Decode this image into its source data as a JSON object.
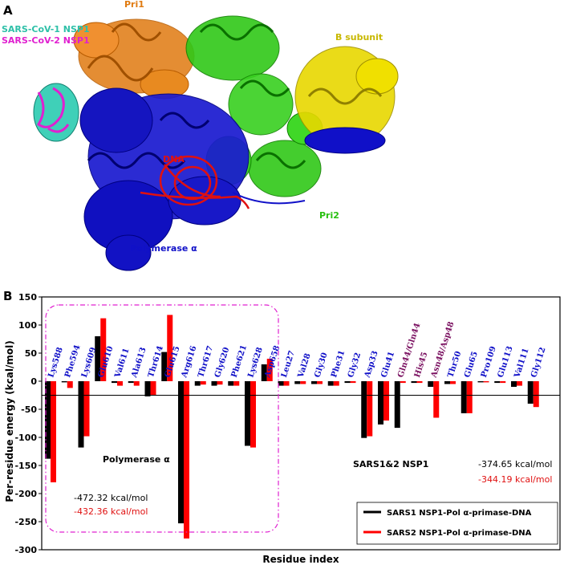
{
  "panel_a": {
    "letter": "A",
    "labels": {
      "pri1": "Pri1",
      "nsp1_cov1": "SARS-CoV-1 NSP1",
      "nsp1_cov2": "SARS-CoV-2 NSP1",
      "b_subunit": "B subunit",
      "dna": "DNA",
      "pri2": "Pri2",
      "polymerase": "Polymerase α"
    },
    "colors": {
      "pri1": "#e07a10",
      "nsp1_cov1": "#3fd0b8",
      "nsp1_cov2": "#e020d0",
      "b_subunit": "#d8c800",
      "dna": "#e01010",
      "pri2": "#28c010",
      "polymerase": "#1010c8"
    }
  },
  "panel_b": {
    "letter": "B",
    "region_label_pol": "Polymerase α",
    "region_label_nsp1": "SARS1&2 NSP1",
    "pol_totals": [
      "-472.32 kcal/mol",
      "-432.36 kcal/mol"
    ],
    "nsp1_totals": [
      "-374.65 kcal/mol",
      "-344.19 kcal/mol"
    ],
    "total_colors": [
      "#000000",
      "#e01010"
    ]
  },
  "chart_data": {
    "type": "bar",
    "ylabel": "Per-residue energy (kcal/mol)",
    "xlabel": "Residue index",
    "ylim": [
      -300,
      150
    ],
    "yticks": [
      150,
      100,
      50,
      0,
      -50,
      -100,
      -150,
      -200,
      -250,
      -300
    ],
    "grid": false,
    "legend_position": "bottom-right",
    "categories": [
      "Lys588",
      "Phe594",
      "Lys609",
      "Glu610",
      "Val611",
      "Ala613",
      "Thr614",
      "Glu615",
      "Arg616",
      "Thr617",
      "Gly620",
      "Phe621",
      "Lys628",
      "Asp658",
      "Leu27",
      "Val28",
      "Gly30",
      "Phe31",
      "Gly32",
      "Asp33",
      "Glu41",
      "Gln44/Gln44",
      "His45",
      "Asn48/Asp48",
      "Thr50",
      "Glu65",
      "Pro109",
      "Glu113",
      "Val111",
      "Gly112"
    ],
    "label_colors": [
      "#1010c8",
      "#1010c8",
      "#1010c8",
      "#1010c8",
      "#1010c8",
      "#1010c8",
      "#1010c8",
      "#1010c8",
      "#1010c8",
      "#1010c8",
      "#1010c8",
      "#1010c8",
      "#1010c8",
      "#1010c8",
      "#1010c8",
      "#1010c8",
      "#1010c8",
      "#1010c8",
      "#1010c8",
      "#1010c8",
      "#1010c8",
      "#7a1060",
      "#7a1060",
      "#7a1060",
      "#1010c8",
      "#1010c8",
      "#1010c8",
      "#1010c8",
      "#1010c8",
      "#1010c8"
    ],
    "series": [
      {
        "name": "SARS1 NSP1-Pol α-primase-DNA",
        "color": "#000000",
        "values": [
          -138,
          -2,
          -118,
          80,
          -3,
          -3,
          -27,
          52,
          -253,
          -8,
          -8,
          -8,
          -115,
          30,
          -8,
          -5,
          -5,
          -8,
          -3,
          -101,
          -77,
          -83,
          -3,
          -10,
          -5,
          -57,
          -2,
          -3,
          -10,
          -40
        ]
      },
      {
        "name": "SARS2 NSP1-Pol α-primase-DNA",
        "color": "#ff0000",
        "values": [
          -180,
          -12,
          -98,
          112,
          -8,
          -8,
          -25,
          118,
          -280,
          -6,
          -6,
          -8,
          -118,
          40,
          -8,
          -5,
          -5,
          -8,
          -3,
          -98,
          -70,
          -3,
          -3,
          -65,
          -5,
          -57,
          -2,
          -3,
          -8,
          -46
        ]
      }
    ]
  }
}
